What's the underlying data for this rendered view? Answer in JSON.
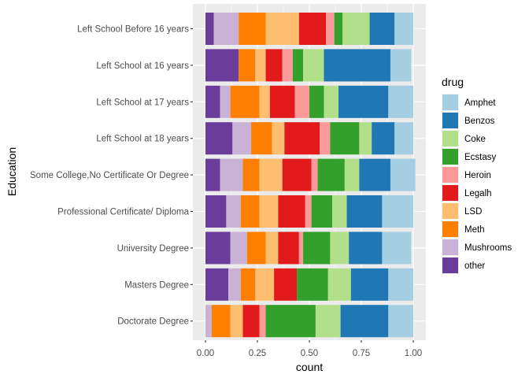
{
  "chart_data": {
    "type": "bar",
    "orientation": "horizontal",
    "stacked": true,
    "normalized": true,
    "xlabel": "count",
    "ylabel": "Education",
    "xlim": [
      0,
      1
    ],
    "x_ticks": [
      "0.00",
      "0.25",
      "0.50",
      "0.75",
      "1.00"
    ],
    "grid": true,
    "legend_position": "right",
    "legend_title": "drug",
    "categories": [
      "Left School Before 16 years",
      "Left School at 16 years",
      "Left School at 17 years",
      "Left School at 18 years",
      "Some College,No Certificate Or Degree",
      "Professional Certificate/ Diploma",
      "University Degree",
      "Masters Degree",
      "Doctorate Degree"
    ],
    "stack_order": [
      "other",
      "Mushrooms",
      "Meth",
      "LSD",
      "Legalh",
      "Heroin",
      "Ecstasy",
      "Coke",
      "Benzos",
      "Amphet"
    ],
    "series": [
      {
        "name": "Amphet",
        "color": "#A6CEE3",
        "values": [
          0.09,
          0.1,
          0.12,
          0.09,
          0.12,
          0.15,
          0.14,
          0.12,
          0.12
        ]
      },
      {
        "name": "Benzos",
        "color": "#1F78B4",
        "values": [
          0.12,
          0.32,
          0.24,
          0.11,
          0.15,
          0.17,
          0.16,
          0.18,
          0.23
        ]
      },
      {
        "name": "Coke",
        "color": "#B2DF8A",
        "values": [
          0.13,
          0.1,
          0.07,
          0.06,
          0.07,
          0.07,
          0.09,
          0.11,
          0.12
        ]
      },
      {
        "name": "Ecstasy",
        "color": "#33A02C",
        "values": [
          0.04,
          0.05,
          0.07,
          0.14,
          0.13,
          0.1,
          0.13,
          0.15,
          0.24
        ]
      },
      {
        "name": "Heroin",
        "color": "#FB9A99",
        "values": [
          0.04,
          0.05,
          0.07,
          0.05,
          0.03,
          0.03,
          0.02,
          0.0,
          0.03
        ]
      },
      {
        "name": "Legalh",
        "color": "#E31A1C",
        "values": [
          0.13,
          0.08,
          0.12,
          0.17,
          0.14,
          0.13,
          0.1,
          0.11,
          0.08
        ]
      },
      {
        "name": "LSD",
        "color": "#FDBF6F",
        "values": [
          0.16,
          0.05,
          0.05,
          0.06,
          0.11,
          0.09,
          0.06,
          0.09,
          0.06
        ]
      },
      {
        "name": "Meth",
        "color": "#FF7F00",
        "values": [
          0.13,
          0.08,
          0.14,
          0.1,
          0.08,
          0.09,
          0.09,
          0.07,
          0.09
        ]
      },
      {
        "name": "Mushrooms",
        "color": "#CAB2D6",
        "values": [
          0.12,
          0.0,
          0.05,
          0.09,
          0.11,
          0.07,
          0.08,
          0.06,
          0.03
        ]
      },
      {
        "name": "other",
        "color": "#6A3D9A",
        "values": [
          0.04,
          0.16,
          0.07,
          0.13,
          0.07,
          0.1,
          0.12,
          0.11,
          0.0
        ]
      }
    ]
  }
}
